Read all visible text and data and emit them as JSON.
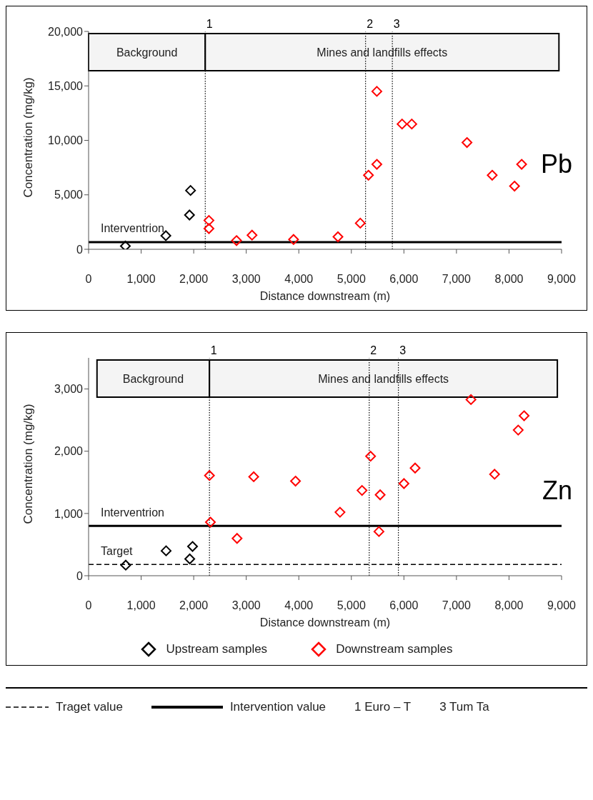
{
  "chart_data": [
    {
      "type": "scatter",
      "xlabel": "Distance downstream (m)",
      "ylabel": "Concentration (mg/kg)",
      "annotations": [
        "Pb",
        {
          "text": "1",
          "x": 2220,
          "y": 20000
        },
        {
          "text": "2",
          "x": 5270,
          "y": 20000
        },
        {
          "text": "3",
          "x": 5780,
          "y": 20000
        }
      ],
      "marker": "diamond",
      "grid": false,
      "legend": false,
      "xlim": [
        0,
        9000
      ],
      "xticks": [
        0,
        {
          "value": 1000,
          "label": "1,000"
        },
        {
          "value": 2000,
          "label": "2,000"
        },
        {
          "value": 3000,
          "label": "3,000"
        },
        {
          "value": 4000,
          "label": "4,000"
        },
        {
          "value": 5000,
          "label": "5,000"
        },
        {
          "value": 6000,
          "label": "6,000"
        },
        {
          "value": 7000,
          "label": "7,000"
        },
        {
          "value": 8000,
          "label": "8,000"
        },
        {
          "value": 9000,
          "label": "9,000"
        }
      ],
      "ylim": [
        0,
        20000
      ],
      "yticks": [
        0,
        {
          "value": 5000,
          "label": "5,000"
        },
        {
          "value": 10000,
          "label": "10,000"
        },
        {
          "value": 15000,
          "label": "15,000"
        },
        {
          "value": 20000,
          "label": "20,000"
        }
      ],
      "series": [
        {
          "color": "#000000",
          "x": [
            700,
            1470,
            1920,
            1940
          ],
          "values": [
            300,
            1250,
            3150,
            5400
          ]
        },
        {
          "color": "#ff0000",
          "x": [
            2290,
            2290,
            2815,
            3110,
            3900,
            4745,
            5170,
            5325,
            5485,
            5485,
            5965,
            6150,
            7200,
            7680,
            8105,
            8240
          ],
          "values": [
            2650,
            1900,
            800,
            1300,
            900,
            1150,
            2400,
            6800,
            7800,
            14500,
            11500,
            11500,
            9800,
            6800,
            5800,
            7800
          ]
        }
      ],
      "ref_lines": [
        {
          "axis": "x",
          "value": 2220,
          "line_style": "dotted",
          "color": "#000000"
        },
        {
          "axis": "x",
          "value": 5270,
          "line_style": "dotted",
          "color": "#000000"
        },
        {
          "axis": "x",
          "value": 5780,
          "line_style": "dotted",
          "color": "#000000"
        },
        {
          "axis": "y",
          "value": 650,
          "label": "Interventrion",
          "line_style": "solid",
          "color": "#000000"
        }
      ],
      "bands": [
        {
          "axis": "x",
          "from": 0,
          "to": 2220,
          "label": "Background",
          "color": "#f4f4f4"
        },
        {
          "axis": "x",
          "from": 2220,
          "to": 8950,
          "label": "Mines and landfills effects",
          "color": "#f4f4f4"
        }
      ]
    },
    {
      "type": "scatter",
      "xlabel": "Distance downstream (m)",
      "ylabel": "Concentration (mg/kg)",
      "annotations": [
        "Zn",
        {
          "text": "1",
          "x": 2300,
          "y": 3500
        },
        {
          "text": "2",
          "x": 5340,
          "y": 3500
        },
        {
          "text": "3",
          "x": 5895,
          "y": 3500
        }
      ],
      "marker": "diamond",
      "grid": false,
      "legend": "bottom",
      "xlim": [
        0,
        9000
      ],
      "xticks": [
        0,
        {
          "value": 1000,
          "label": "1,000"
        },
        {
          "value": 2000,
          "label": "2,000"
        },
        {
          "value": 3000,
          "label": "3,000"
        },
        {
          "value": 4000,
          "label": "4,000"
        },
        {
          "value": 5000,
          "label": "5,000"
        },
        {
          "value": 6000,
          "label": "6,000"
        },
        {
          "value": 7000,
          "label": "7,000"
        },
        {
          "value": 8000,
          "label": "8,000"
        },
        {
          "value": 9000,
          "label": "9,000"
        }
      ],
      "ylim": [
        0,
        3500
      ],
      "yticks": [
        0,
        {
          "value": 1000,
          "label": "1,000"
        },
        {
          "value": 2000,
          "label": "2,000"
        },
        {
          "value": 3000,
          "label": "3,000"
        }
      ],
      "series": [
        {
          "name": "Upstream samples",
          "color": "#000000",
          "x": [
            707,
            1475,
            1925,
            1978
          ],
          "values": [
            170,
            400,
            270,
            470
          ]
        },
        {
          "name": "Downstream samples",
          "color": "#ff0000",
          "x": [
            2300,
            2318,
            2825,
            3142,
            3937,
            4784,
            5203,
            5366,
            5548,
            5525,
            6001,
            6213,
            7276,
            7725,
            8175,
            8287
          ],
          "values": [
            1610,
            860,
            600,
            1590,
            1520,
            1020,
            1370,
            1920,
            1300,
            710,
            1480,
            1730,
            2830,
            1630,
            2340,
            2570
          ]
        }
      ],
      "ref_lines": [
        {
          "axis": "x",
          "value": 2300,
          "line_style": "dotted",
          "color": "#000000"
        },
        {
          "axis": "x",
          "value": 5340,
          "line_style": "dotted",
          "color": "#000000"
        },
        {
          "axis": "x",
          "value": 5895,
          "line_style": "dotted",
          "color": "#000000"
        },
        {
          "axis": "y",
          "value": 800,
          "label": "Interventrion",
          "line_style": "solid",
          "color": "#000000"
        },
        {
          "axis": "y",
          "value": 180,
          "label": "Target",
          "line_style": "dashed",
          "color": "#000000"
        }
      ],
      "bands": [
        {
          "axis": "x",
          "from": 160,
          "to": 2300,
          "label": "Background",
          "color": "#f4f4f4"
        },
        {
          "axis": "x",
          "from": 2300,
          "to": 8920,
          "label": "Mines and landfills effects",
          "color": "#f4f4f4"
        }
      ]
    },
    {
      "type": "other",
      "annotations": [
        "Traget value",
        "Intervention value",
        "1 Euro – T",
        "3 Tum Ta"
      ]
    }
  ]
}
